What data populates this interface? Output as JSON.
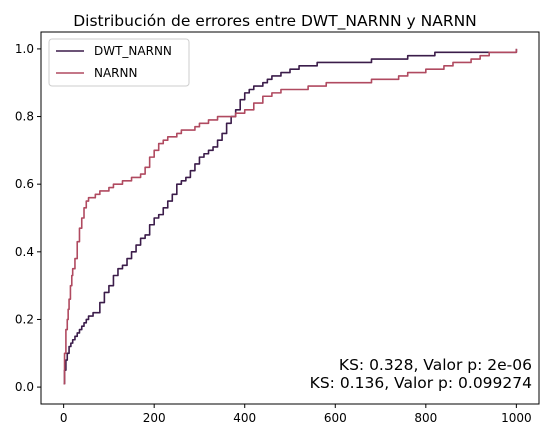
{
  "chart_data": {
    "type": "line",
    "step": true,
    "title": "Distribución de errores entre DWT_NARNN y NARNN",
    "xlabel": "",
    "ylabel": "",
    "xlim": [
      -50,
      1050
    ],
    "ylim": [
      -0.05,
      1.05
    ],
    "xticks": [
      "0",
      "200",
      "400",
      "600",
      "800",
      "1000"
    ],
    "xtick_values": [
      0,
      200,
      400,
      600,
      800,
      1000
    ],
    "yticks": [
      "0.0",
      "0.2",
      "0.4",
      "0.6",
      "0.8",
      "1.0"
    ],
    "ytick_values": [
      0.0,
      0.2,
      0.4,
      0.6,
      0.8,
      1.0
    ],
    "grid": false,
    "legend_position": "top-left",
    "series": [
      {
        "name": "DWT_NARNN",
        "color": "#3b1c4a",
        "x": [
          0,
          2,
          5,
          8,
          12,
          16,
          20,
          25,
          30,
          35,
          40,
          45,
          50,
          55,
          60,
          65,
          70,
          80,
          90,
          100,
          110,
          120,
          130,
          140,
          150,
          160,
          170,
          180,
          190,
          200,
          210,
          220,
          230,
          240,
          250,
          260,
          270,
          280,
          290,
          300,
          310,
          320,
          330,
          340,
          350,
          360,
          370,
          380,
          390,
          400,
          410,
          420,
          430,
          440,
          450,
          460,
          470,
          480,
          490,
          500,
          520,
          540,
          560,
          580,
          600,
          620,
          640,
          660,
          680,
          700,
          720,
          740,
          760,
          780,
          800,
          820,
          840,
          860,
          880,
          900,
          950,
          990,
          1000
        ],
        "y": [
          0.01,
          0.05,
          0.08,
          0.1,
          0.12,
          0.13,
          0.14,
          0.15,
          0.16,
          0.17,
          0.18,
          0.19,
          0.2,
          0.21,
          0.21,
          0.22,
          0.22,
          0.25,
          0.28,
          0.3,
          0.33,
          0.35,
          0.36,
          0.38,
          0.4,
          0.42,
          0.44,
          0.45,
          0.48,
          0.5,
          0.51,
          0.53,
          0.55,
          0.57,
          0.6,
          0.61,
          0.62,
          0.64,
          0.66,
          0.68,
          0.69,
          0.7,
          0.71,
          0.73,
          0.75,
          0.78,
          0.8,
          0.82,
          0.85,
          0.87,
          0.88,
          0.89,
          0.89,
          0.9,
          0.91,
          0.92,
          0.92,
          0.93,
          0.93,
          0.94,
          0.95,
          0.95,
          0.96,
          0.96,
          0.96,
          0.96,
          0.96,
          0.96,
          0.97,
          0.97,
          0.97,
          0.97,
          0.98,
          0.98,
          0.98,
          0.99,
          0.99,
          0.99,
          0.99,
          0.99,
          0.99,
          0.99,
          1.0
        ]
      },
      {
        "name": "NARNN",
        "color": "#b04a60",
        "x": [
          0,
          2,
          5,
          8,
          10,
          12,
          15,
          18,
          20,
          25,
          30,
          35,
          40,
          45,
          50,
          55,
          60,
          70,
          80,
          90,
          100,
          110,
          120,
          130,
          140,
          150,
          160,
          170,
          180,
          190,
          200,
          210,
          220,
          230,
          240,
          250,
          260,
          270,
          280,
          290,
          300,
          320,
          340,
          360,
          380,
          400,
          420,
          440,
          460,
          480,
          500,
          520,
          540,
          560,
          580,
          600,
          620,
          640,
          660,
          680,
          700,
          720,
          740,
          760,
          780,
          800,
          820,
          840,
          860,
          880,
          900,
          920,
          940,
          960,
          980,
          1000
        ],
        "y": [
          0.01,
          0.1,
          0.17,
          0.2,
          0.23,
          0.26,
          0.3,
          0.33,
          0.35,
          0.38,
          0.43,
          0.47,
          0.5,
          0.53,
          0.55,
          0.56,
          0.56,
          0.57,
          0.58,
          0.58,
          0.59,
          0.6,
          0.6,
          0.61,
          0.61,
          0.62,
          0.62,
          0.63,
          0.65,
          0.68,
          0.7,
          0.72,
          0.73,
          0.74,
          0.74,
          0.75,
          0.76,
          0.76,
          0.76,
          0.77,
          0.78,
          0.79,
          0.8,
          0.8,
          0.81,
          0.82,
          0.84,
          0.86,
          0.87,
          0.88,
          0.88,
          0.88,
          0.89,
          0.89,
          0.9,
          0.9,
          0.9,
          0.9,
          0.9,
          0.91,
          0.91,
          0.91,
          0.92,
          0.93,
          0.93,
          0.94,
          0.94,
          0.95,
          0.96,
          0.96,
          0.97,
          0.98,
          0.99,
          0.99,
          0.99,
          1.0
        ]
      }
    ],
    "annotations": [
      "KS: 0.328, Valor p: 2e-06",
      "KS: 0.136, Valor p: 0.099274"
    ]
  }
}
